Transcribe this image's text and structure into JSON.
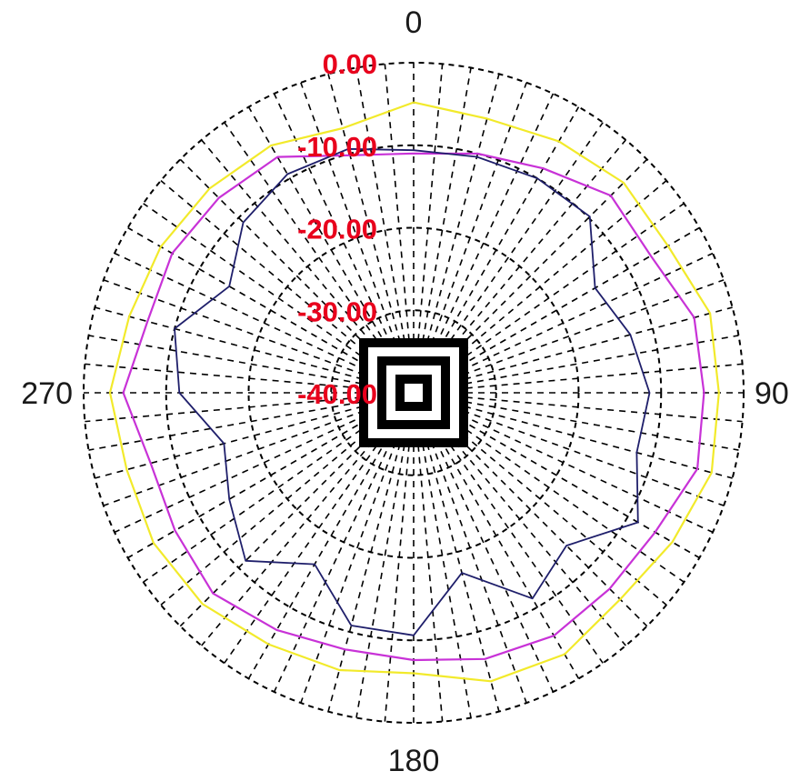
{
  "chart_data": {
    "type": "polar",
    "angle_labels": [
      "0",
      "90",
      "180",
      "270"
    ],
    "angle_direction": "clockwise",
    "angle_zero": "top",
    "spoke_step_deg": 5,
    "radial_labels": [
      "0.00",
      "-10.00",
      "-20.00",
      "-30.00",
      "-40.00"
    ],
    "r_range": [
      -40,
      0
    ],
    "grid": true,
    "series": [
      {
        "color": "#f2ea2b",
        "theta": [
          0,
          15,
          30,
          45,
          60,
          75,
          90,
          105,
          120,
          135,
          150,
          165,
          180,
          195,
          210,
          225,
          240,
          255,
          270,
          285,
          300,
          315,
          330,
          345
        ],
        "r": [
          -4.8,
          -5.6,
          -4.8,
          -4.0,
          -4.4,
          -2.8,
          -3.0,
          -2.6,
          -3.8,
          -4.6,
          -3.4,
          -3.8,
          -6.0,
          -5.2,
          -4.8,
          -3.8,
          -3.6,
          -4.0,
          -3.2,
          -4.3,
          -4.6,
          -5.0,
          -5.4,
          -6.8
        ]
      },
      {
        "color": "#c832d7",
        "theta": [
          0,
          15,
          30,
          45,
          60,
          75,
          90,
          105,
          120,
          135,
          150,
          165,
          180,
          195,
          210,
          225,
          240,
          255,
          270,
          285,
          300,
          315,
          330,
          345
        ],
        "r": [
          -11.0,
          -10.0,
          -8.6,
          -6.2,
          -6.8,
          -4.8,
          -4.8,
          -4.4,
          -6.2,
          -6.4,
          -6.0,
          -6.6,
          -7.6,
          -7.8,
          -6.8,
          -5.6,
          -6.6,
          -7.0,
          -4.8,
          -6.6,
          -6.2,
          -6.6,
          -7.0,
          -10.2
        ]
      },
      {
        "color": "#1f1f6b",
        "theta": [
          0,
          15,
          30,
          45,
          60,
          75,
          90,
          105,
          120,
          135,
          150,
          165,
          180,
          195,
          210,
          225,
          240,
          255,
          270,
          285,
          300,
          315,
          330,
          345
        ],
        "r": [
          -10.6,
          -10.4,
          -10.0,
          -9.8,
          -14.6,
          -12.8,
          -11.4,
          -12.0,
          -8.6,
          -13.8,
          -11.2,
          -17.4,
          -10.6,
          -10.8,
          -16.0,
          -11.2,
          -14.2,
          -16.2,
          -11.6,
          -10.0,
          -14.2,
          -10.8,
          -9.4,
          -9.4
        ]
      }
    ]
  }
}
